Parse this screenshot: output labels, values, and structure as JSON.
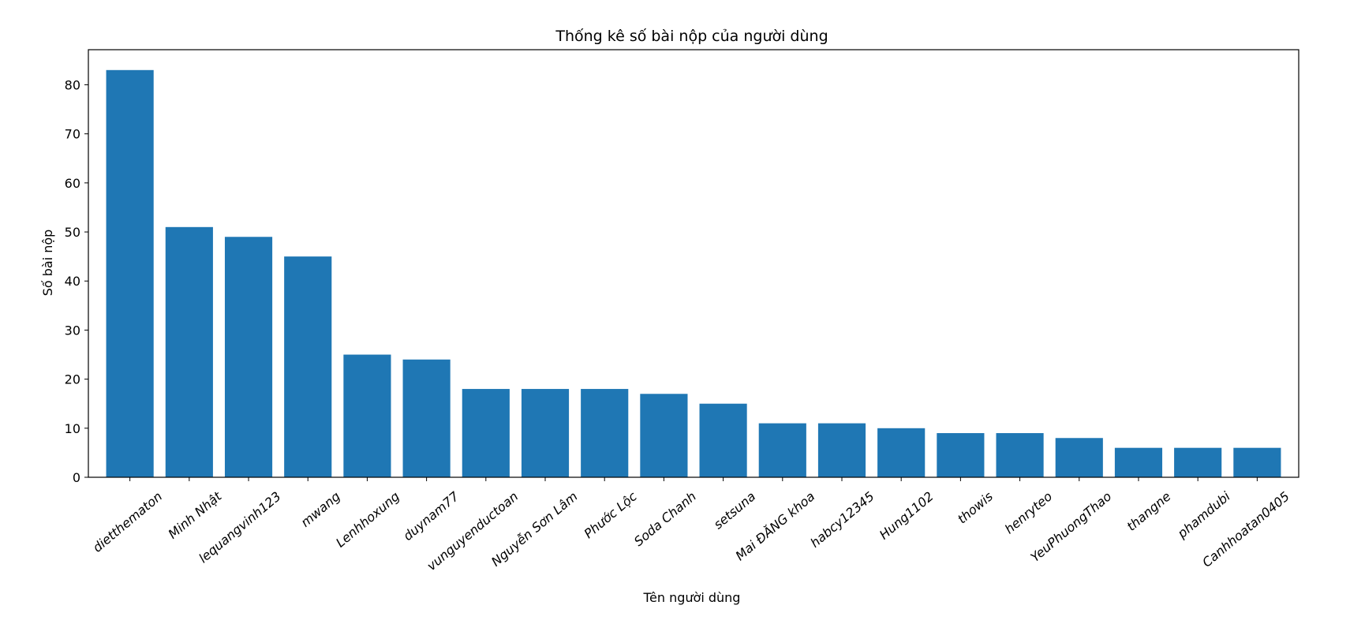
{
  "chart_data": {
    "type": "bar",
    "title": "Thống kê số bài nộp của người dùng",
    "xlabel": "Tên người dùng",
    "ylabel": "Số bài nộp",
    "categories": [
      "dietthematon",
      "Minh Nhật",
      "lequangvinh123",
      "mwang",
      "Lenhhoxung",
      "duynam77",
      "vunguyenductoan",
      "Nguyễn Sơn Lâm",
      "Phước Lộc",
      "Soda Chanh",
      "setsuna",
      "Mai ĐĂNG khoa",
      "habcy12345",
      "Hung1102",
      "thowis",
      "henryteo",
      "YeuPhuongThao",
      "thangne",
      "phamdubi",
      "Canhhoatan0405"
    ],
    "values": [
      83,
      51,
      49,
      45,
      25,
      24,
      18,
      18,
      18,
      17,
      15,
      11,
      11,
      10,
      9,
      9,
      8,
      6,
      6,
      6
    ],
    "yticks": [
      "0",
      "10",
      "20",
      "30",
      "40",
      "50",
      "60",
      "70",
      "80"
    ],
    "ylim": [
      0,
      87.15
    ],
    "bar_color": "#1f77b4",
    "grid": false,
    "legend": "none"
  }
}
